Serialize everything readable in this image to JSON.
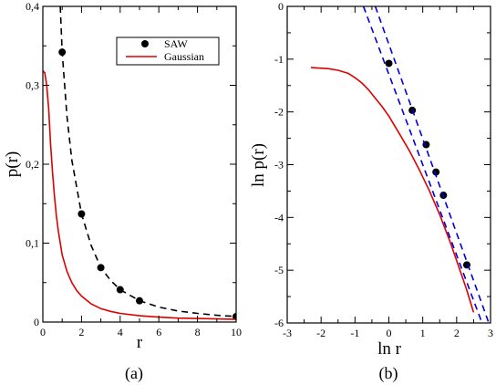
{
  "chart_data": [
    {
      "type": "scatter",
      "panel_label": "(a)",
      "xlabel": "r",
      "ylabel": "p(r)",
      "xlim": [
        0,
        10
      ],
      "ylim": [
        0,
        0.4
      ],
      "xticks": [
        0,
        2,
        4,
        6,
        8,
        10
      ],
      "xtick_labels": [
        "0",
        "2",
        "4",
        "6",
        "8",
        "10"
      ],
      "yticks": [
        0,
        0.1,
        0.2,
        0.3,
        0.4
      ],
      "ytick_labels": [
        "0",
        "0,1",
        "0,2",
        "0,3",
        "0,4"
      ],
      "legend_position": "top-right",
      "series": [
        {
          "name": "SAW",
          "kind": "points",
          "color": "#000000",
          "x": [
            1,
            2,
            3,
            4,
            5,
            10
          ],
          "y": [
            0.342,
            0.137,
            0.069,
            0.041,
            0.027,
            0.007
          ]
        },
        {
          "kind": "dashed-line",
          "color": "#000000",
          "x": [
            0.9,
            1,
            1.25,
            1.5,
            2,
            2.5,
            3,
            3.5,
            4,
            5,
            6,
            7,
            8,
            9,
            10
          ],
          "y": [
            0.4,
            0.342,
            0.26,
            0.205,
            0.137,
            0.097,
            0.069,
            0.053,
            0.041,
            0.027,
            0.019,
            0.014,
            0.011,
            0.0085,
            0.007
          ]
        },
        {
          "name": "Gaussian",
          "kind": "line",
          "color": "#dd0000",
          "x": [
            0,
            0.1,
            0.2,
            0.3,
            0.4,
            0.5,
            0.6,
            0.7,
            0.8,
            1,
            1.25,
            1.5,
            1.75,
            2,
            2.5,
            3,
            3.5,
            4,
            5,
            6,
            7,
            8,
            10
          ],
          "y": [
            0.318,
            0.316,
            0.3,
            0.27,
            0.225,
            0.19,
            0.16,
            0.135,
            0.115,
            0.085,
            0.064,
            0.05,
            0.04,
            0.033,
            0.023,
            0.017,
            0.0135,
            0.011,
            0.008,
            0.0062,
            0.005,
            0.0045,
            0.0035
          ]
        }
      ]
    },
    {
      "type": "scatter",
      "panel_label": "(b)",
      "xlabel": "ln r",
      "ylabel": "ln p(r)",
      "xlim": [
        -3,
        3
      ],
      "ylim": [
        -6,
        0
      ],
      "xticks": [
        -3,
        -2,
        -1,
        0,
        1,
        2,
        3
      ],
      "xtick_labels": [
        "-3",
        "-2",
        "-1",
        "0",
        "1",
        "2",
        "3"
      ],
      "yticks": [
        -6,
        -5,
        -4,
        -3,
        -2,
        -1,
        0
      ],
      "ytick_labels": [
        "-6",
        "-5",
        "-4",
        "-3",
        "-2",
        "-1",
        "0"
      ],
      "series": [
        {
          "kind": "points",
          "color": "#000000",
          "x": [
            0,
            0.69,
            1.1,
            1.39,
            1.61,
            2.3
          ],
          "y": [
            -1.08,
            -1.97,
            -2.62,
            -3.14,
            -3.58,
            -4.9
          ]
        },
        {
          "kind": "line",
          "color": "#dd0000",
          "x": [
            -2.3,
            -1.8,
            -1.5,
            -1.2,
            -1.0,
            -0.8,
            -0.6,
            -0.4,
            -0.2,
            0,
            0.3,
            0.6,
            0.9,
            1.2,
            1.5,
            1.8,
            2.1,
            2.3,
            2.5
          ],
          "y": [
            -1.16,
            -1.18,
            -1.21,
            -1.27,
            -1.35,
            -1.45,
            -1.58,
            -1.74,
            -1.9,
            -2.08,
            -2.4,
            -2.73,
            -3.1,
            -3.5,
            -3.95,
            -4.45,
            -5.0,
            -5.38,
            -5.8
          ]
        },
        {
          "kind": "dashed-line",
          "color": "#0000dd",
          "x": [
            -0.75,
            2.75
          ],
          "y": [
            0,
            -6
          ]
        },
        {
          "kind": "dashed-line",
          "color": "#0000dd",
          "x": [
            -0.4,
            2.95
          ],
          "y": [
            0,
            -6
          ]
        }
      ]
    }
  ]
}
